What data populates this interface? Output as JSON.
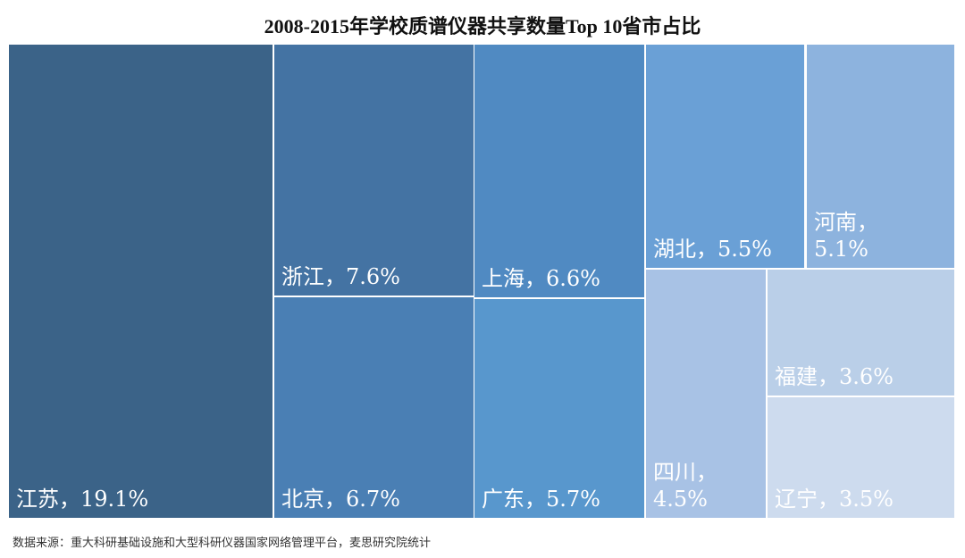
{
  "chart_data": {
    "type": "treemap",
    "title": "2008-2015年学校质谱仪器共享数量Top 10省市占比",
    "unit": "%",
    "separator": "，",
    "items": [
      {
        "name": "江苏",
        "value": 19.1,
        "color": "#3b6388"
      },
      {
        "name": "浙江",
        "value": 7.6,
        "color": "#4473a3"
      },
      {
        "name": "北京",
        "value": 6.7,
        "color": "#4a7fb4"
      },
      {
        "name": "上海",
        "value": 6.6,
        "color": "#508ac2"
      },
      {
        "name": "广东",
        "value": 5.7,
        "color": "#5897cd"
      },
      {
        "name": "湖北",
        "value": 5.5,
        "color": "#6aa0d6"
      },
      {
        "name": "河南",
        "value": 5.1,
        "color": "#8db3de"
      },
      {
        "name": "四川",
        "value": 4.5,
        "color": "#a8c2e5"
      },
      {
        "name": "福建",
        "value": 3.6,
        "color": "#bacfe8"
      },
      {
        "name": "辽宁",
        "value": 3.5,
        "color": "#cddbee"
      }
    ]
  },
  "source": "数据来源：重大科研基础设施和大型科研仪器国家网络管理平台，麦思研究院统计"
}
